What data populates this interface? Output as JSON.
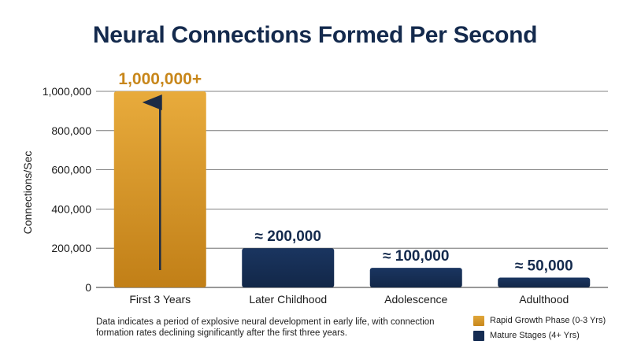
{
  "chart_data": {
    "type": "bar",
    "title": "Neural Connections Formed Per Second",
    "xlabel": "",
    "ylabel": "Connections/Sec",
    "ylim": [
      0,
      1000000
    ],
    "yticks": [
      0,
      200000,
      400000,
      600000,
      800000,
      1000000
    ],
    "ytick_labels": [
      "0",
      "200,000",
      "400,000",
      "600,000",
      "800,000",
      "1,000,000"
    ],
    "grid": true,
    "categories": [
      "First 3 Years",
      "Later Childhood",
      "Adolescence",
      "Adulthood"
    ],
    "values": [
      1000000,
      200000,
      100000,
      50000
    ],
    "data_labels": [
      "1,000,000+",
      "≈ 200,000",
      "≈ 100,000",
      "≈ 50,000"
    ],
    "bar_groups": [
      "rapid",
      "mature",
      "mature",
      "mature"
    ],
    "legend": [
      {
        "key": "rapid",
        "label": "Rapid Growth Phase (0-3 Yrs)",
        "color": "#d99a2b"
      },
      {
        "key": "mature",
        "label": "Mature Stages (4+ Yrs)",
        "color": "#152c52"
      }
    ],
    "legend_position": "bottom-right",
    "annotation": "Data indicates a period of explosive neural development in early life, with connection formation rates declining significantly after the first three years."
  },
  "colors": {
    "title": "#142a4d",
    "rapid_label": "#c8871b",
    "arrow": "#1c2b45",
    "grid": "#5a5a5a"
  }
}
